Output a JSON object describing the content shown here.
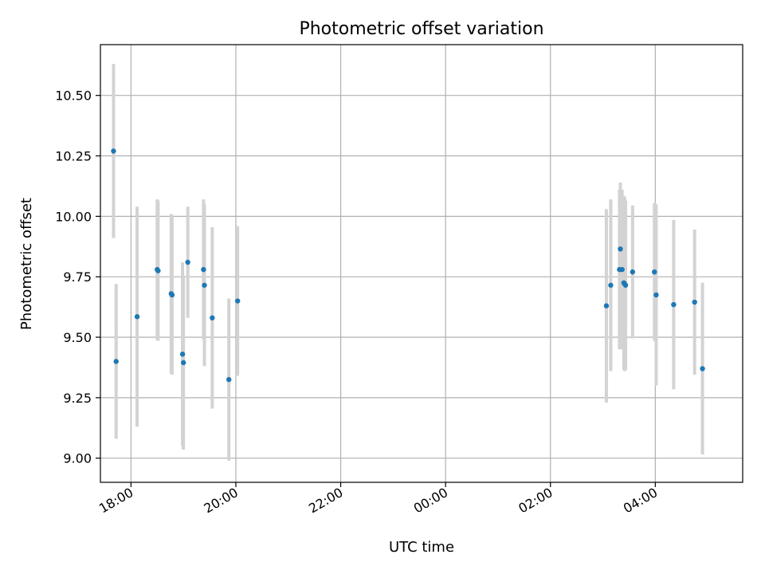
{
  "chart_data": {
    "type": "scatter",
    "title": "Photometric offset variation",
    "xlabel": "UTC time",
    "ylabel": "Photometric offset",
    "x_ticks": [
      "18:00",
      "20:00",
      "22:00",
      "00:00",
      "02:00",
      "04:00"
    ],
    "y_ticks": [
      "9.00",
      "9.25",
      "9.50",
      "9.75",
      "10.00",
      "10.25",
      "10.50"
    ],
    "xlim": [
      "17:25",
      "05:40"
    ],
    "ylim": [
      8.9,
      10.71
    ],
    "grid": true,
    "colors": {
      "points": "#1f77b4",
      "errorbars": "#d3d3d3",
      "grid": "#b0b0b0"
    },
    "points": [
      {
        "x": "17:40",
        "y": 10.27,
        "err": 0.36
      },
      {
        "x": "17:43",
        "y": 9.4,
        "err": 0.32
      },
      {
        "x": "18:07",
        "y": 9.585,
        "err": 0.455
      },
      {
        "x": "18:30",
        "y": 9.78,
        "err": 0.29
      },
      {
        "x": "18:31",
        "y": 9.775,
        "err": 0.29
      },
      {
        "x": "18:46",
        "y": 9.68,
        "err": 0.33
      },
      {
        "x": "18:47",
        "y": 9.675,
        "err": 0.33
      },
      {
        "x": "18:59",
        "y": 9.43,
        "err": 0.38
      },
      {
        "x": "19:00",
        "y": 9.395,
        "err": 0.36
      },
      {
        "x": "19:05",
        "y": 9.81,
        "err": 0.23
      },
      {
        "x": "19:23",
        "y": 9.78,
        "err": 0.29
      },
      {
        "x": "19:24",
        "y": 9.715,
        "err": 0.335
      },
      {
        "x": "19:33",
        "y": 9.58,
        "err": 0.375
      },
      {
        "x": "19:52",
        "y": 9.325,
        "err": 0.335
      },
      {
        "x": "20:02",
        "y": 9.65,
        "err": 0.31
      },
      {
        "x": "03:04",
        "y": 9.63,
        "err": 0.4
      },
      {
        "x": "03:09",
        "y": 9.715,
        "err": 0.355
      },
      {
        "x": "03:19",
        "y": 9.78,
        "err": 0.33
      },
      {
        "x": "03:20",
        "y": 9.865,
        "err": 0.275
      },
      {
        "x": "03:22",
        "y": 9.78,
        "err": 0.33
      },
      {
        "x": "03:24",
        "y": 9.725,
        "err": 0.36
      },
      {
        "x": "03:25",
        "y": 9.72,
        "err": 0.36
      },
      {
        "x": "03:26",
        "y": 9.715,
        "err": 0.35
      },
      {
        "x": "03:34",
        "y": 9.77,
        "err": 0.275
      },
      {
        "x": "03:59",
        "y": 9.77,
        "err": 0.285
      },
      {
        "x": "04:01",
        "y": 9.675,
        "err": 0.375
      },
      {
        "x": "04:21",
        "y": 9.635,
        "err": 0.35
      },
      {
        "x": "04:45",
        "y": 9.645,
        "err": 0.3
      },
      {
        "x": "04:54",
        "y": 9.37,
        "err": 0.355
      }
    ]
  }
}
